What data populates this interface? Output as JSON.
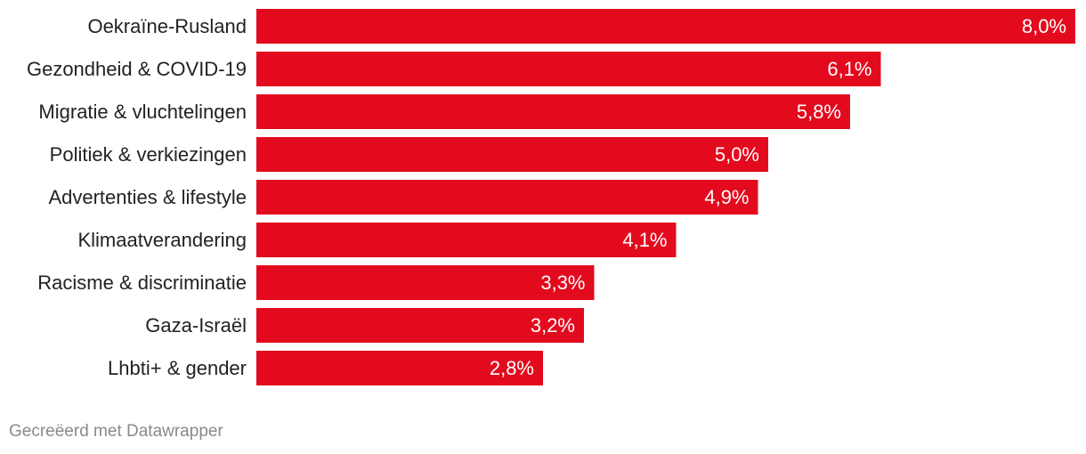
{
  "chart_data": {
    "type": "bar",
    "orientation": "horizontal",
    "categories": [
      "Oekraïne-Rusland",
      "Gezondheid & COVID-19",
      "Migratie & vluchtelingen",
      "Politiek & verkiezingen",
      "Advertenties & lifestyle",
      "Klimaatverandering",
      "Racisme & discriminatie",
      "Gaza-Israël",
      "Lhbti+ & gender"
    ],
    "values": [
      8.0,
      6.1,
      5.8,
      5.0,
      4.9,
      4.1,
      3.3,
      3.2,
      2.8
    ],
    "value_labels": [
      "8,0%",
      "6,1%",
      "5,8%",
      "5,0%",
      "4,9%",
      "4,1%",
      "3,3%",
      "3,2%",
      "2,8%"
    ],
    "xlim": [
      0,
      8.0
    ],
    "grid": false,
    "legend": "none",
    "bar_color": "#e30a1e"
  },
  "footer": {
    "credit": "Gecreëerd met Datawrapper"
  }
}
